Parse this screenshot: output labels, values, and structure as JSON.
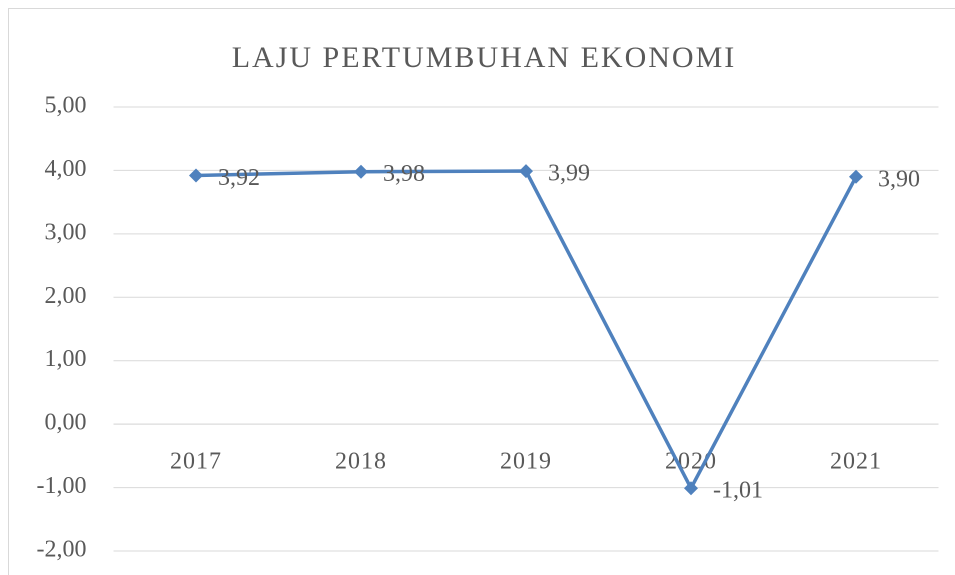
{
  "chart_data": {
    "type": "line",
    "title": "LAJU PERTUMBUHAN EKONOMI",
    "categories": [
      "2017",
      "2018",
      "2019",
      "2020",
      "2021"
    ],
    "series": [
      {
        "name": "Laju Pertumbuhan Ekonomi",
        "color": "#4f81bd",
        "values": [
          3.92,
          3.98,
          3.99,
          -1.01,
          3.9
        ],
        "value_labels": [
          "3,92",
          "3,98",
          "3,99",
          "-1,01",
          "3,90"
        ]
      }
    ],
    "ylim": [
      -2,
      5
    ],
    "yticks": [
      {
        "value": -2,
        "label": "-2,00"
      },
      {
        "value": -1,
        "label": "-1,00"
      },
      {
        "value": 0,
        "label": "0,00"
      },
      {
        "value": 1,
        "label": "1,00"
      },
      {
        "value": 2,
        "label": "2,00"
      },
      {
        "value": 3,
        "label": "3,00"
      },
      {
        "value": 4,
        "label": "4,00"
      },
      {
        "value": 5,
        "label": "5,00"
      }
    ],
    "grid": true
  }
}
